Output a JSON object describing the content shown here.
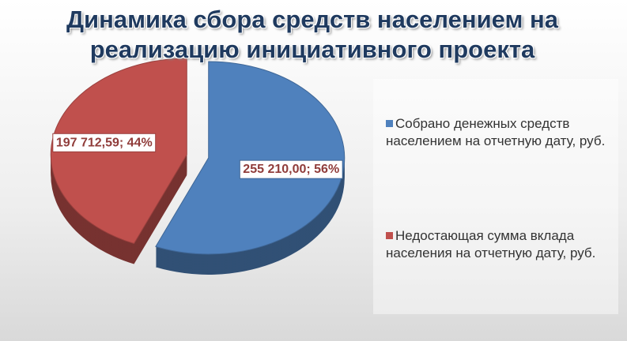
{
  "chart_data": {
    "type": "pie",
    "title": "Динамика сбора средств населением на реализацию инициативного проекта",
    "categories": [
      "Собрано денежных средств населением на отчетную дату, руб.",
      "Недостающая сумма вклада населения на отчетную дату, руб."
    ],
    "values": [
      255210.0,
      197712.59
    ],
    "value_labels": [
      "255 210,00; 56%",
      "197 712,59; 44%"
    ],
    "colors": [
      "#4f81bd",
      "#c0504d"
    ],
    "legend": "right"
  }
}
